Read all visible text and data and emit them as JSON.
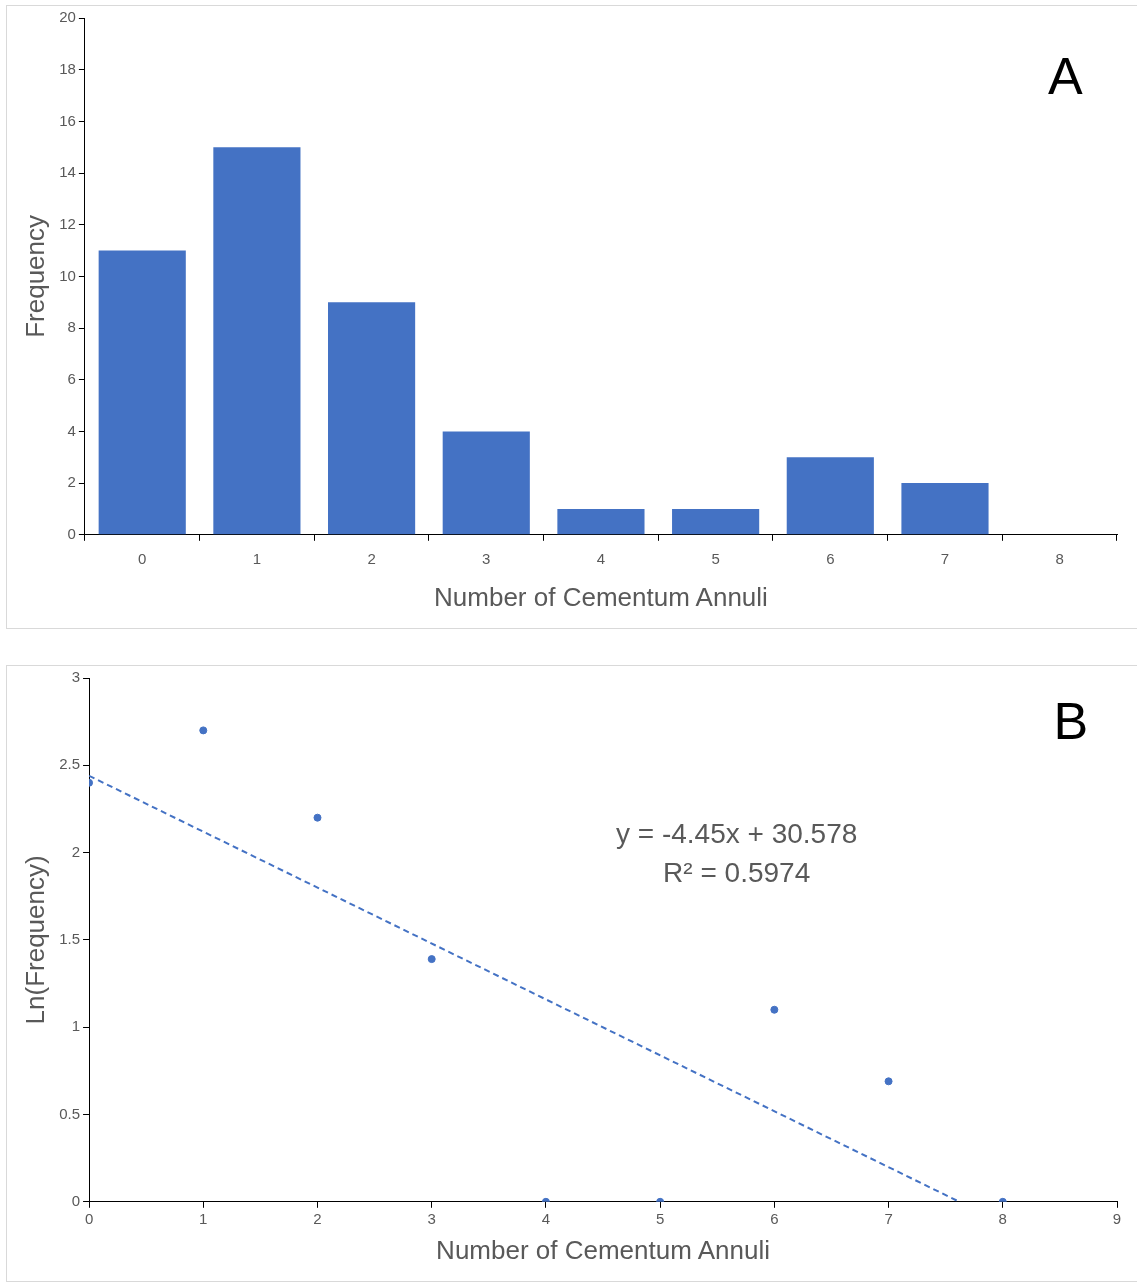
{
  "chart_data": [
    {
      "type": "bar",
      "xlabel": "Number of Cementum Annuli",
      "ylabel": "Frequency",
      "categories": [
        "0",
        "1",
        "2",
        "3",
        "4",
        "5",
        "6",
        "7",
        "8"
      ],
      "values": [
        11,
        15,
        9,
        4,
        1,
        1,
        3,
        2,
        0
      ],
      "color": "#4472c4",
      "ylim": [
        0,
        20
      ],
      "yticks": [
        0,
        2,
        4,
        6,
        8,
        10,
        12,
        14,
        16,
        18,
        20
      ],
      "grid": false,
      "legend": false,
      "annotations": [
        "A"
      ]
    },
    {
      "type": "scatter",
      "xlabel": "Number of Cementum Annuli",
      "ylabel": "Ln(Frequency)",
      "xlim": [
        0,
        9
      ],
      "xticks": [
        0,
        1,
        2,
        3,
        4,
        5,
        6,
        7,
        8,
        9
      ],
      "ylim": [
        0,
        3
      ],
      "yticks": [
        0,
        0.5,
        1,
        1.5,
        2,
        2.5,
        3
      ],
      "grid": false,
      "legend": false,
      "series": [
        {
          "type": "scatter",
          "marker": "circle",
          "color": "#4472c4",
          "x": [
            0,
            1,
            2,
            3,
            4,
            5,
            6,
            7,
            8
          ],
          "values": [
            2.4,
            2.7,
            2.2,
            1.39,
            0,
            0,
            1.1,
            0.69,
            0
          ]
        },
        {
          "type": "line",
          "color": "#4472c4",
          "line_style": "dashed",
          "x": [
            0,
            7.62
          ],
          "values": [
            2.44,
            0
          ]
        }
      ],
      "annotations": [
        "B",
        "y = -4.45x + 30.578",
        "R² = 0.5974"
      ]
    }
  ]
}
